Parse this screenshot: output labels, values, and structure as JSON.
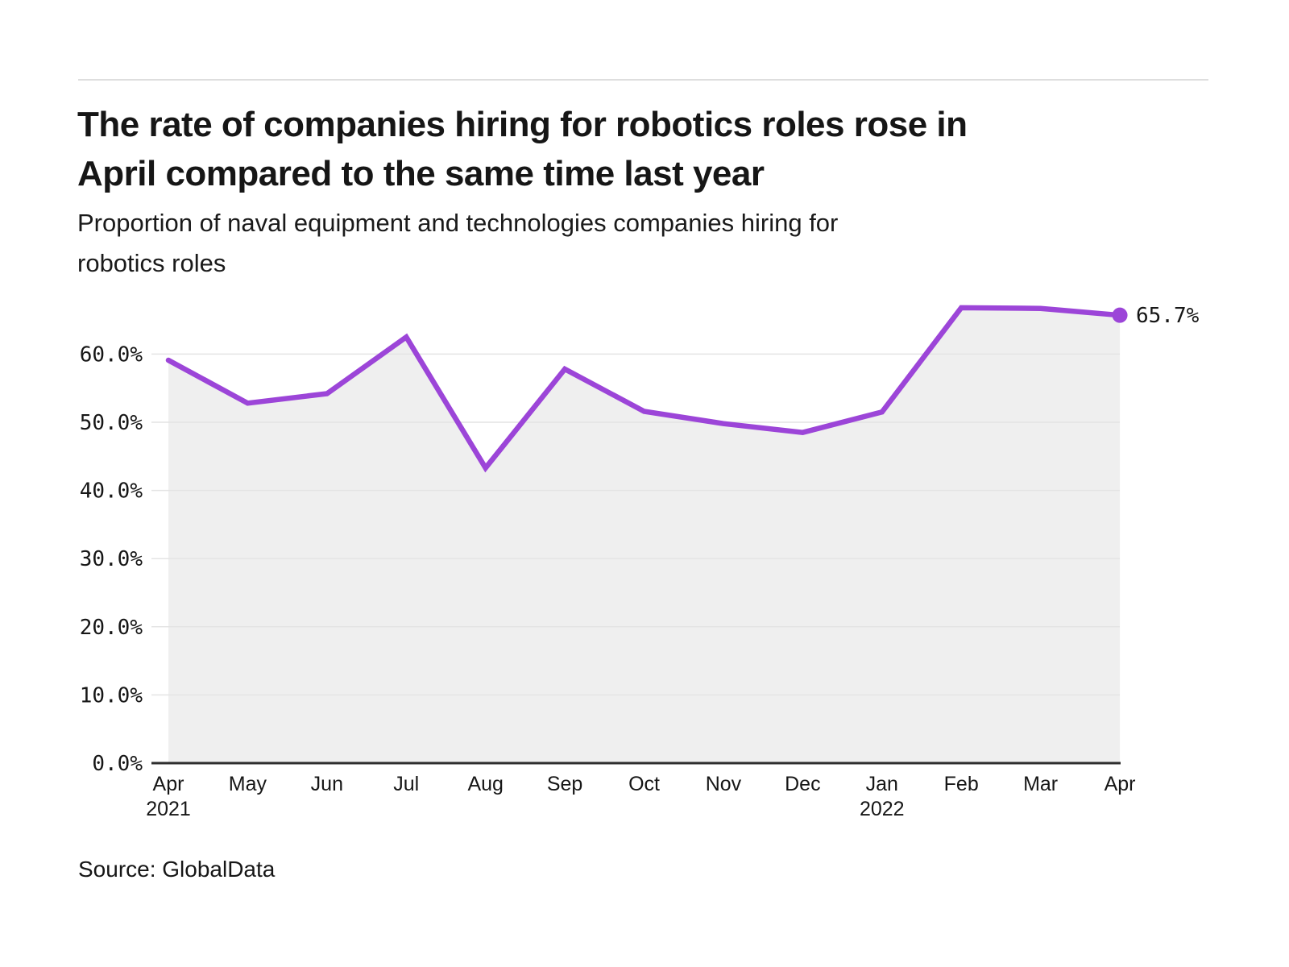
{
  "header": {
    "title_lines": [
      "The rate of companies hiring for robotics roles rose in",
      "April compared to the same time last year"
    ],
    "subtitle_lines": [
      "Proportion of naval equipment and technologies companies hiring for",
      "robotics roles"
    ]
  },
  "source": "Source: GlobalData",
  "chart_data": {
    "type": "line",
    "title": "The rate of companies hiring for robotics roles rose in April compared to the same time last year",
    "subtitle": "Proportion of naval equipment and technologies companies hiring for robotics roles",
    "categories": [
      "Apr",
      "May",
      "Jun",
      "Jul",
      "Aug",
      "Sep",
      "Oct",
      "Nov",
      "Dec",
      "Jan",
      "Feb",
      "Mar",
      "Apr"
    ],
    "year_markers": [
      {
        "index": 0,
        "label": "2021"
      },
      {
        "index": 9,
        "label": "2022"
      }
    ],
    "values": [
      59.1,
      52.8,
      54.2,
      62.5,
      43.3,
      57.8,
      51.6,
      49.8,
      48.5,
      51.5,
      66.8,
      66.7,
      65.7
    ],
    "unit": "%",
    "ylim": [
      0,
      68
    ],
    "yticks": [
      0,
      10,
      20,
      30,
      40,
      50,
      60
    ],
    "ytick_labels": [
      "0.0%",
      "10.0%",
      "20.0%",
      "30.0%",
      "40.0%",
      "50.0%",
      "60.0%"
    ],
    "end_label": "65.7%",
    "grid": true,
    "legend": "none",
    "area_fill": true,
    "colors": {
      "line": "#9c45d8",
      "area": "#efefef",
      "grid": "#e4e4e4",
      "axis": "#2e2e2e",
      "text": "#161616"
    }
  }
}
